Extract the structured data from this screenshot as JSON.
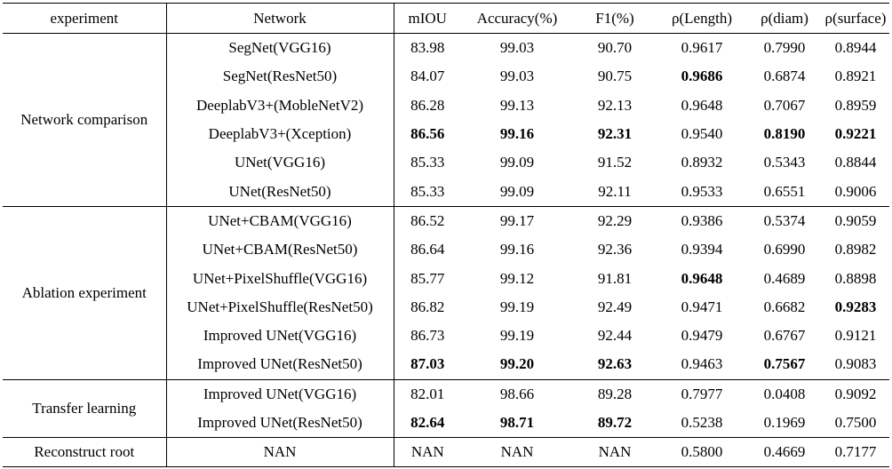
{
  "headers": [
    "experiment",
    "Network",
    "mIOU",
    "Accuracy(%)",
    "F1(%)",
    "ρ(Length)",
    "ρ(diam)",
    "ρ(surface)"
  ],
  "groups": [
    {
      "experiment": "Network comparison",
      "rows": [
        {
          "network": "SegNet(VGG16)",
          "values": [
            "83.98",
            "99.03",
            "90.70",
            "0.9617",
            "0.7990",
            "0.8944"
          ],
          "bold": [
            false,
            false,
            false,
            false,
            false,
            false
          ]
        },
        {
          "network": "SegNet(ResNet50)",
          "values": [
            "84.07",
            "99.03",
            "90.75",
            "0.9686",
            "0.6874",
            "0.8921"
          ],
          "bold": [
            false,
            false,
            false,
            true,
            false,
            false
          ]
        },
        {
          "network": "DeeplabV3+(MobleNetV2)",
          "values": [
            "86.28",
            "99.13",
            "92.13",
            "0.9648",
            "0.7067",
            "0.8959"
          ],
          "bold": [
            false,
            false,
            false,
            false,
            false,
            false
          ]
        },
        {
          "network": "DeeplabV3+(Xception)",
          "values": [
            "86.56",
            "99.16",
            "92.31",
            "0.9540",
            "0.8190",
            "0.9221"
          ],
          "bold": [
            true,
            true,
            true,
            false,
            true,
            true
          ]
        },
        {
          "network": "UNet(VGG16)",
          "values": [
            "85.33",
            "99.09",
            "91.52",
            "0.8932",
            "0.5343",
            "0.8844"
          ],
          "bold": [
            false,
            false,
            false,
            false,
            false,
            false
          ]
        },
        {
          "network": "UNet(ResNet50)",
          "values": [
            "85.33",
            "99.09",
            "92.11",
            "0.9533",
            "0.6551",
            "0.9006"
          ],
          "bold": [
            false,
            false,
            false,
            false,
            false,
            false
          ]
        }
      ]
    },
    {
      "experiment": "Ablation experiment",
      "rows": [
        {
          "network": "UNet+CBAM(VGG16)",
          "values": [
            "86.52",
            "99.17",
            "92.29",
            "0.9386",
            "0.5374",
            "0.9059"
          ],
          "bold": [
            false,
            false,
            false,
            false,
            false,
            false
          ]
        },
        {
          "network": "UNet+CBAM(ResNet50)",
          "values": [
            "86.64",
            "99.16",
            "92.36",
            "0.9394",
            "0.6990",
            "0.8982"
          ],
          "bold": [
            false,
            false,
            false,
            false,
            false,
            false
          ]
        },
        {
          "network": "UNet+PixelShuffle(VGG16)",
          "values": [
            "85.77",
            "99.12",
            "91.81",
            "0.9648",
            "0.4689",
            "0.8898"
          ],
          "bold": [
            false,
            false,
            false,
            true,
            false,
            false
          ]
        },
        {
          "network": "UNet+PixelShuffle(ResNet50)",
          "values": [
            "86.82",
            "99.19",
            "92.49",
            "0.9471",
            "0.6682",
            "0.9283"
          ],
          "bold": [
            false,
            false,
            false,
            false,
            false,
            true
          ]
        },
        {
          "network": "Improved UNet(VGG16)",
          "values": [
            "86.73",
            "99.19",
            "92.44",
            "0.9479",
            "0.6767",
            "0.9121"
          ],
          "bold": [
            false,
            false,
            false,
            false,
            false,
            false
          ]
        },
        {
          "network": "Improved UNet(ResNet50)",
          "values": [
            "87.03",
            "99.20",
            "92.63",
            "0.9463",
            "0.7567",
            "0.9083"
          ],
          "bold": [
            true,
            true,
            true,
            false,
            true,
            false
          ]
        }
      ]
    },
    {
      "experiment": "Transfer learning",
      "rows": [
        {
          "network": "Improved UNet(VGG16)",
          "values": [
            "82.01",
            "98.66",
            "89.28",
            "0.7977",
            "0.0408",
            "0.9092"
          ],
          "bold": [
            false,
            false,
            false,
            false,
            false,
            false
          ]
        },
        {
          "network": "Improved UNet(ResNet50)",
          "values": [
            "82.64",
            "98.71",
            "89.72",
            "0.5238",
            "0.1969",
            "0.7500"
          ],
          "bold": [
            true,
            true,
            true,
            false,
            false,
            false
          ]
        }
      ]
    },
    {
      "experiment": "Reconstruct root",
      "rows": [
        {
          "network": "NAN",
          "values": [
            "NAN",
            "NAN",
            "NAN",
            "0.5800",
            "0.4669",
            "0.7177"
          ],
          "bold": [
            false,
            false,
            false,
            false,
            false,
            false
          ]
        }
      ]
    }
  ]
}
